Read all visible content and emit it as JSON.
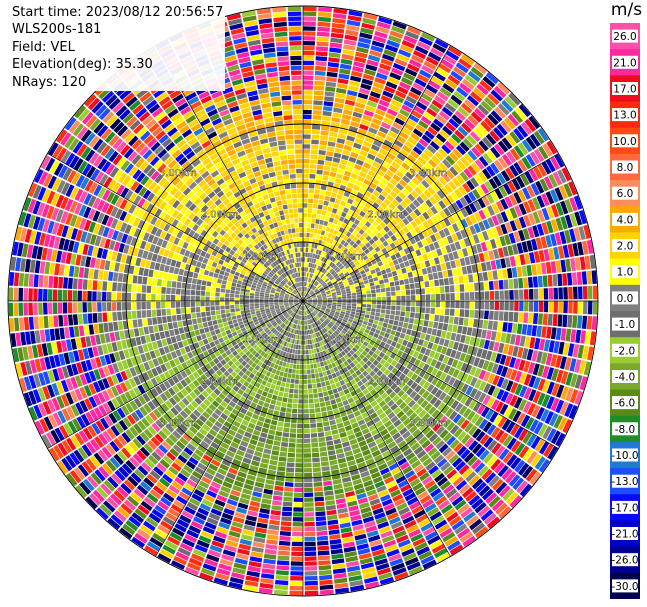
{
  "header": {
    "start_time": "Start time: 2023/08/12 20:56:57",
    "instrument": "WLS200s-181",
    "field": "Field: VEL",
    "elevation": "Elevation(deg): 35.30",
    "nrays": "NRays: 120"
  },
  "colorbar": {
    "unit": "m/s",
    "min": -30.0,
    "max": 30.0,
    "tick_labels": [
      "26.0",
      "21.0",
      "17.0",
      "13.0",
      "10.0",
      "8.0",
      "6.0",
      "4.0",
      "2.0",
      "1.0",
      "0.0",
      "-1.0",
      "-2.0",
      "-4.0",
      "-6.0",
      "-8.0",
      "-10.0",
      "-13.0",
      "-17.0",
      "-21.0",
      "-26.0",
      "-30.0"
    ],
    "bins": [
      {
        "lo": 26,
        "hi": 30,
        "color": "#ff50a8"
      },
      {
        "lo": 21,
        "hi": 26,
        "color": "#ff28a0"
      },
      {
        "lo": 17,
        "hi": 21,
        "color": "#f00c20"
      },
      {
        "lo": 13,
        "hi": 17,
        "color": "#ff2810"
      },
      {
        "lo": 10,
        "hi": 13,
        "color": "#ff4a14"
      },
      {
        "lo": 8,
        "hi": 10,
        "color": "#ff6a3c"
      },
      {
        "lo": 6,
        "hi": 8,
        "color": "#ff8c5a"
      },
      {
        "lo": 4,
        "hi": 6,
        "color": "#ffa800"
      },
      {
        "lo": 2,
        "hi": 4,
        "color": "#ffd400"
      },
      {
        "lo": 1,
        "hi": 2,
        "color": "#ffff00"
      },
      {
        "lo": 0,
        "hi": 1,
        "color": "#808080"
      },
      {
        "lo": -1,
        "hi": 0,
        "color": "#6e6e6e"
      },
      {
        "lo": -2,
        "hi": -1,
        "color": "#9acd32"
      },
      {
        "lo": -4,
        "hi": -2,
        "color": "#7aa82a"
      },
      {
        "lo": -6,
        "hi": -4,
        "color": "#5a8a1a"
      },
      {
        "lo": -8,
        "hi": -6,
        "color": "#1e8c28"
      },
      {
        "lo": -10,
        "hi": -8,
        "color": "#1e7ad2"
      },
      {
        "lo": -13,
        "hi": -10,
        "color": "#1e4cff"
      },
      {
        "lo": -17,
        "hi": -13,
        "color": "#0a0aff"
      },
      {
        "lo": -21,
        "hi": -17,
        "color": "#0000c8"
      },
      {
        "lo": -26,
        "hi": -21,
        "color": "#000090"
      },
      {
        "lo": -30,
        "hi": -26,
        "color": "#000050"
      }
    ]
  },
  "chart_data": {
    "type": "heatmap",
    "projection": "polar-ppi",
    "field": "VEL",
    "units": "m/s",
    "nrays": 120,
    "range_rings_km": [
      1.0,
      2.0,
      3.0
    ],
    "ring_labels": [
      "1.00km",
      "2.00km",
      "3.00km"
    ],
    "max_range_km": 5.0,
    "spokes_deg": [
      0,
      30,
      60,
      90,
      120,
      150,
      180,
      210,
      240,
      270,
      300,
      330
    ],
    "data_summary": "North sector mostly +1 to +6 m/s (yellow/orange), south sector mostly 0 to -4 m/s (greens), center near 0 m/s (gray), outer ranges beyond about 3.5 km are noise across all bins"
  }
}
